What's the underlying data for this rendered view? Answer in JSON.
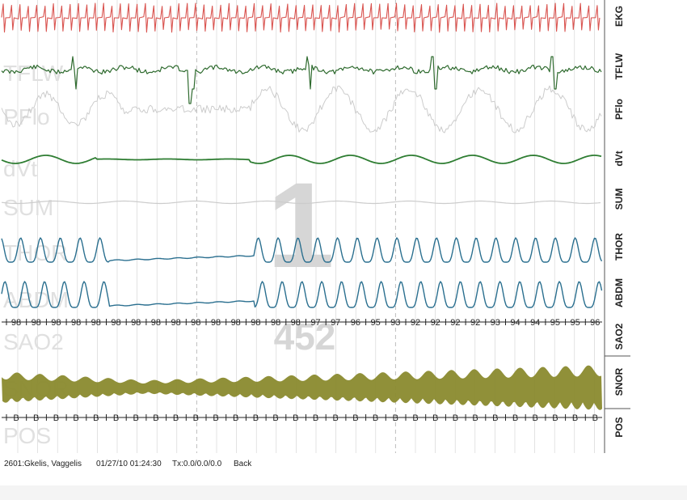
{
  "channels": [
    {
      "id": "ekg",
      "label": "EKG",
      "bg_label": "",
      "color": "#d9534f"
    },
    {
      "id": "tflw",
      "label": "TFLW",
      "bg_label": "TFLW",
      "color": "#2f6b2f"
    },
    {
      "id": "pflo",
      "label": "PFlo",
      "bg_label": "PFlo",
      "color": "#cccccc"
    },
    {
      "id": "dvt",
      "label": "dVt",
      "bg_label": "dVt",
      "color": "#2e7d32"
    },
    {
      "id": "sum",
      "label": "SUM",
      "bg_label": "SUM",
      "color": "#cfcfcf"
    },
    {
      "id": "thor",
      "label": "THOR",
      "bg_label": "THOR",
      "color": "#2a6f8f"
    },
    {
      "id": "abdm",
      "label": "ABDM",
      "bg_label": "ABDM",
      "color": "#2a6f8f"
    },
    {
      "id": "sao2",
      "label": "SAO2",
      "bg_label": "SAO2",
      "color": "#333333"
    },
    {
      "id": "snor",
      "label": "SNOR",
      "bg_label": "SNOR",
      "color": "#8a8a2e"
    },
    {
      "id": "pos",
      "label": "POS",
      "bg_label": "POS",
      "color": "#333333"
    }
  ],
  "sao2_values": [
    98,
    98,
    98,
    98,
    98,
    98,
    98,
    98,
    98,
    98,
    98,
    98,
    98,
    98,
    98,
    97,
    97,
    96,
    95,
    93,
    92,
    92,
    92,
    92,
    93,
    94,
    94,
    95,
    95,
    96
  ],
  "pos_values": [
    "B",
    "B",
    "B",
    "B",
    "B",
    "B",
    "B",
    "B",
    "B",
    "B",
    "B",
    "B",
    "B",
    "B",
    "B",
    "B",
    "B",
    "B",
    "B",
    "B",
    "B",
    "B",
    "B",
    "B",
    "B",
    "B",
    "B",
    "B",
    "B",
    "B"
  ],
  "overlay": {
    "epoch_number": "1",
    "count": "452"
  },
  "footer": {
    "patient": "2601:Gkelis, Vaggelis",
    "datetime": "01/27/10 01:24:30",
    "tx": "Tx:0.0/0.0/0.0",
    "nav": "Back"
  },
  "colors": {
    "ekg": "#d9534f",
    "green": "#2f6b2f",
    "teal": "#2a6f8f",
    "snore": "#8a8a2e",
    "light": "#cccccc",
    "grid": "#d0d0d0"
  }
}
